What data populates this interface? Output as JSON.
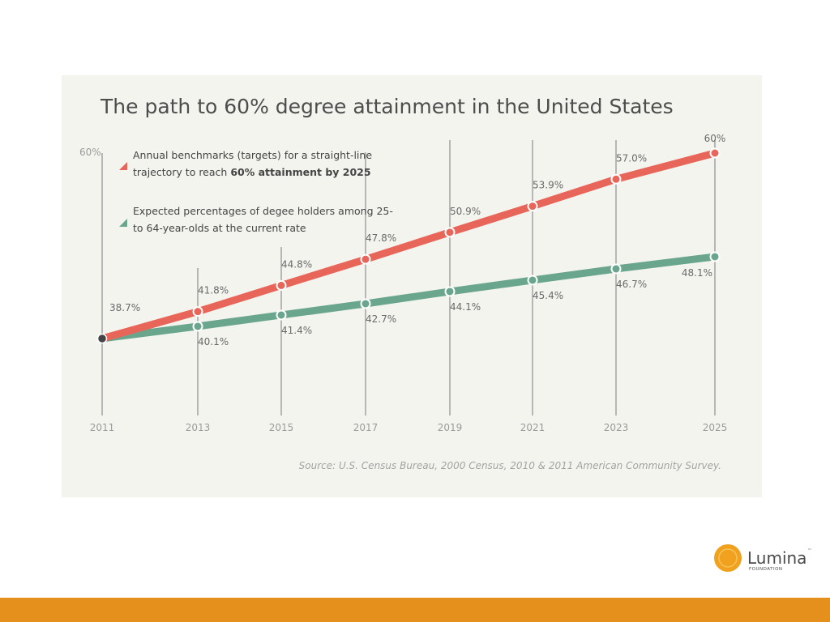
{
  "chart_data": {
    "type": "line",
    "title": "The path to 60% degree attainment in the United States",
    "x": [
      2011,
      2013,
      2015,
      2017,
      2019,
      2021,
      2023,
      2025
    ],
    "x_tick_labels": [
      "2011",
      "2013",
      "2015",
      "2017",
      "2019",
      "2021",
      "2023",
      "2025"
    ],
    "ylim": [
      38.7,
      60
    ],
    "y_axis_top_label": "60%",
    "series": [
      {
        "name": "benchmarks",
        "legend_lines": [
          "Annual benchmarks (targets) for a straight-line",
          "trajectory to reach "
        ],
        "legend_bold": "60% attainment by 2025",
        "color": "#e8655a",
        "values": [
          38.7,
          41.8,
          44.8,
          47.8,
          50.9,
          53.9,
          57.0,
          60.0
        ],
        "labels": [
          "38.7%",
          "41.8%",
          "44.8%",
          "47.8%",
          "50.9%",
          "53.9%",
          "57.0%",
          "60%"
        ]
      },
      {
        "name": "expected",
        "legend_lines": [
          "Expected percentages of degee holders among 25-",
          "to 64-year-olds at the current rate"
        ],
        "color": "#6aa68d",
        "values": [
          38.7,
          40.1,
          41.4,
          42.7,
          44.1,
          45.4,
          46.7,
          48.1
        ],
        "labels": [
          "",
          "40.1%",
          "41.4%",
          "42.7%",
          "44.1%",
          "45.4%",
          "46.7%",
          "48.1%"
        ]
      }
    ],
    "source": "Source: U.S. Census Bureau, 2000 Census, 2010 & 2011 American Community Survey."
  },
  "logo": {
    "name": "Lumina",
    "tm": "™",
    "sub": "FOUNDATION"
  },
  "colors": {
    "orange": "#e58f1d",
    "dark_point": "#444444",
    "panel": "#f4f4ef"
  }
}
